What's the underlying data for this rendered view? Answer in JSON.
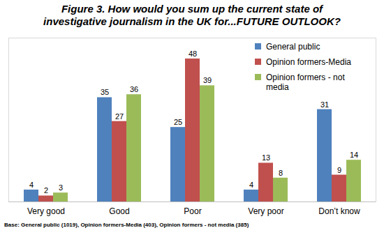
{
  "chart_data": {
    "type": "bar",
    "title": "Figure 3. How would you sum up the current state of investigative journalism in the UK for...FUTURE OUTLOOK?",
    "caption": "Base: General public (1019), Opinion formers-Media (403), Opinion formers - not media (385)",
    "categories": [
      "Very good",
      "Good",
      "Poor",
      "Very poor",
      "Don’t know"
    ],
    "series": [
      {
        "name": "General public",
        "color": "#4f81bd",
        "values": [
          4,
          35,
          25,
          4,
          31
        ]
      },
      {
        "name": "Opinion formers-Media",
        "color": "#c0504d",
        "values": [
          2,
          27,
          48,
          13,
          9
        ]
      },
      {
        "name": "Opinion formers - not media",
        "color": "#9bbb59",
        "values": [
          3,
          36,
          39,
          8,
          14
        ]
      }
    ],
    "ylim": [
      0,
      55
    ],
    "yticks": [],
    "grid": false,
    "legend": "top-right",
    "data_labels": true,
    "tick_labels": "x"
  }
}
